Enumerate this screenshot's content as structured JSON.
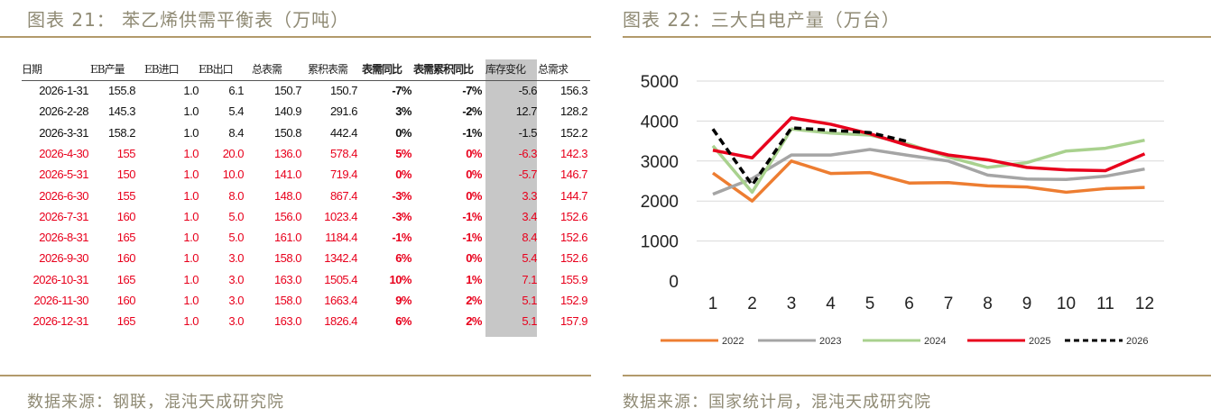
{
  "left": {
    "title": "图表 21： 苯乙烯供需平衡表（万吨）",
    "source": "数据来源：钢联，混沌天成研究院",
    "table": {
      "headers": [
        "日期",
        "EB产量",
        "EB进口",
        "EB出口",
        "总表需",
        "累积表需",
        "表需同比",
        "表需累积同比",
        "库存变化",
        "总需求"
      ],
      "rows": [
        [
          "2026-1-31",
          "155.8",
          "1.0",
          "6.1",
          "150.7",
          "150.7",
          "-7%",
          "-7%",
          "-5.6",
          "156.3"
        ],
        [
          "2026-2-28",
          "145.3",
          "1.0",
          "5.4",
          "140.9",
          "291.6",
          "3%",
          "-2%",
          "12.7",
          "128.2"
        ],
        [
          "2026-3-31",
          "158.2",
          "1.0",
          "8.4",
          "150.8",
          "442.4",
          "0%",
          "-1%",
          "-1.5",
          "152.2"
        ],
        [
          "2026-4-30",
          "155",
          "1.0",
          "20.0",
          "136.0",
          "578.4",
          "5%",
          "0%",
          "-6.3",
          "142.3"
        ],
        [
          "2026-5-31",
          "150",
          "1.0",
          "10.0",
          "141.0",
          "719.4",
          "0%",
          "0%",
          "-5.7",
          "146.7"
        ],
        [
          "2026-6-30",
          "155",
          "1.0",
          "8.0",
          "148.0",
          "867.4",
          "-3%",
          "0%",
          "3.3",
          "144.7"
        ],
        [
          "2026-7-31",
          "160",
          "1.0",
          "5.0",
          "156.0",
          "1023.4",
          "-3%",
          "-1%",
          "3.4",
          "152.6"
        ],
        [
          "2026-8-31",
          "165",
          "1.0",
          "5.0",
          "161.0",
          "1184.4",
          "-1%",
          "-1%",
          "8.4",
          "152.6"
        ],
        [
          "2026-9-30",
          "160",
          "1.0",
          "3.0",
          "158.0",
          "1342.4",
          "6%",
          "0%",
          "5.4",
          "152.6"
        ],
        [
          "2026-10-31",
          "165",
          "1.0",
          "3.0",
          "163.0",
          "1505.4",
          "10%",
          "1%",
          "7.1",
          "155.9"
        ],
        [
          "2026-11-30",
          "160",
          "1.0",
          "3.0",
          "158.0",
          "1663.4",
          "9%",
          "2%",
          "5.1",
          "152.9"
        ],
        [
          "2026-12-31",
          "165",
          "1.0",
          "3.0",
          "163.0",
          "1826.4",
          "6%",
          "2%",
          "5.1",
          "157.9"
        ]
      ],
      "red_rows_from_index": 3,
      "colors": {
        "red": "#e8001c",
        "black": "#111111",
        "highlight_col": "#c7c7c7"
      }
    }
  },
  "right": {
    "title": "图表 22：三大白电产量（万台）",
    "source": "数据来源：国家统计局，混沌天成研究院",
    "chart_data": {
      "type": "line",
      "title": "",
      "xlabel": "",
      "ylabel": "",
      "x": [
        1,
        2,
        3,
        4,
        5,
        6,
        7,
        8,
        9,
        10,
        11,
        12
      ],
      "ylim": [
        0,
        5000
      ],
      "yticks": [
        0,
        1000,
        2000,
        3000,
        4000,
        5000
      ],
      "grid": "horizontal",
      "legend": "bottom",
      "series": [
        {
          "name": "2022",
          "color": "#ed7d31",
          "dash": false,
          "values": [
            2700,
            2000,
            3000,
            2690,
            2710,
            2450,
            2460,
            2380,
            2350,
            2220,
            2310,
            2340
          ]
        },
        {
          "name": "2023",
          "color": "#a5a5a5",
          "dash": false,
          "values": [
            2170,
            2560,
            3150,
            3150,
            3290,
            3140,
            3000,
            2650,
            2550,
            2540,
            2620,
            2800
          ]
        },
        {
          "name": "2024",
          "color": "#a9d18e",
          "dash": false,
          "values": [
            3380,
            2220,
            3800,
            3700,
            3650,
            3420,
            3100,
            2840,
            2960,
            3250,
            3320,
            3520
          ]
        },
        {
          "name": "2025",
          "color": "#e8001c",
          "dash": false,
          "values": [
            3270,
            3080,
            4080,
            3920,
            3680,
            3380,
            3150,
            3030,
            2840,
            2780,
            2760,
            3180
          ]
        },
        {
          "name": "2026",
          "color": "#000000",
          "dash": true,
          "values": [
            3800,
            2400,
            3830,
            3770,
            3710,
            3480,
            null,
            null,
            null,
            null,
            null,
            null
          ]
        }
      ]
    }
  }
}
